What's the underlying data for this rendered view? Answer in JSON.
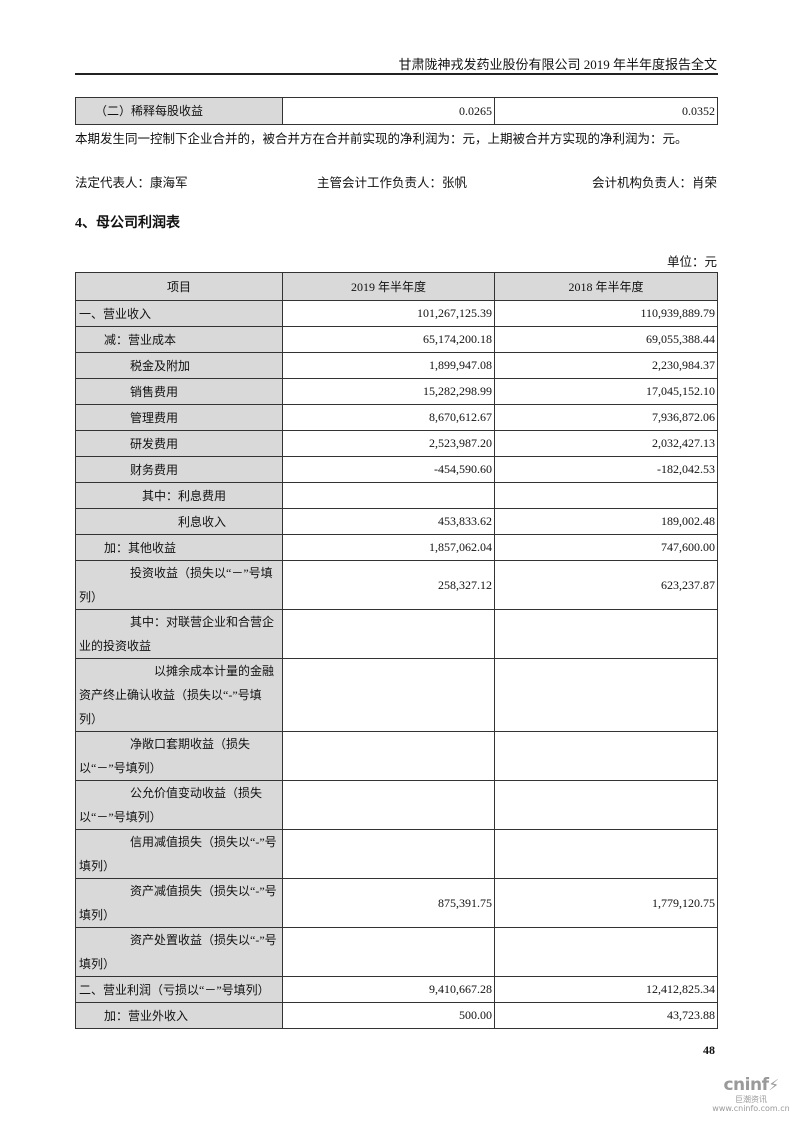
{
  "header": {
    "running_title": "甘肃陇神戎发药业股份有限公司 2019 年半年度报告全文"
  },
  "eps_row": {
    "label": "（二）稀释每股收益",
    "v2019": "0.0265",
    "v2018": "0.0352"
  },
  "merge_note": "本期发生同一控制下企业合并的，被合并方在合并前实现的净利润为：元，上期被合并方实现的净利润为：元。",
  "signatures": {
    "legal_rep": "法定代表人：康海军",
    "accounting_head": "主管会计工作负责人：张帆",
    "accounting_dept_head": "会计机构负责人：肖荣"
  },
  "section_title": "4、母公司利润表",
  "unit": "单位：元",
  "table": {
    "headers": [
      "项目",
      "2019 年半年度",
      "2018 年半年度"
    ],
    "rows": [
      {
        "label": "一、营业收入",
        "v2019": "101,267,125.39",
        "v2018": "110,939,889.79"
      },
      {
        "label": "减：营业成本",
        "v2019": "65,174,200.18",
        "v2018": "69,055,388.44"
      },
      {
        "label": "税金及附加",
        "v2019": "1,899,947.08",
        "v2018": "2,230,984.37"
      },
      {
        "label": "销售费用",
        "v2019": "15,282,298.99",
        "v2018": "17,045,152.10"
      },
      {
        "label": "管理费用",
        "v2019": "8,670,612.67",
        "v2018": "7,936,872.06"
      },
      {
        "label": "研发费用",
        "v2019": "2,523,987.20",
        "v2018": "2,032,427.13"
      },
      {
        "label": "财务费用",
        "v2019": "-454,590.60",
        "v2018": "-182,042.53"
      },
      {
        "label": "其中：利息费用",
        "v2019": "",
        "v2018": ""
      },
      {
        "label": "利息收入",
        "v2019": "453,833.62",
        "v2018": "189,002.48"
      },
      {
        "label": "加：其他收益",
        "v2019": "1,857,062.04",
        "v2018": "747,600.00"
      },
      {
        "label": "投资收益（损失以“－”号填列）",
        "v2019": "258,327.12",
        "v2018": "623,237.87"
      },
      {
        "label": "其中：对联营企业和合营企业的投资收益",
        "v2019": "",
        "v2018": ""
      },
      {
        "label": "以摊余成本计量的金融资产终止确认收益（损失以“-”号填列）",
        "v2019": "",
        "v2018": ""
      },
      {
        "label": "净敞口套期收益（损失以“－”号填列）",
        "v2019": "",
        "v2018": ""
      },
      {
        "label": "公允价值变动收益（损失以“－”号填列）",
        "v2019": "",
        "v2018": ""
      },
      {
        "label": "信用减值损失（损失以“-”号填列）",
        "v2019": "",
        "v2018": ""
      },
      {
        "label": "资产减值损失（损失以“-”号填列）",
        "v2019": "875,391.75",
        "v2018": "1,779,120.75"
      },
      {
        "label": "资产处置收益（损失以“-”号填列）",
        "v2019": "",
        "v2018": ""
      },
      {
        "label": "二、营业利润（亏损以“－”号填列）",
        "v2019": "9,410,667.28",
        "v2018": "12,412,825.34"
      },
      {
        "label": "加：营业外收入",
        "v2019": "500.00",
        "v2018": "43,723.88"
      }
    ]
  },
  "footer": {
    "page_number": "48"
  },
  "watermark": {
    "brand": "cninf",
    "brand_cn": "巨潮资讯",
    "url": "www.cninfo.com.cn"
  }
}
